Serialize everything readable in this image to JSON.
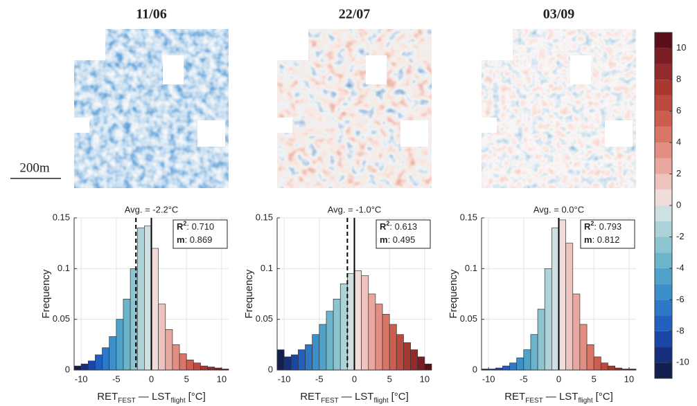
{
  "chart_data": [
    {
      "type": "histogram",
      "title": "11/06",
      "avg_text": "Avg. = -2.2°C",
      "mean": -2.2,
      "bins": [
        -11,
        -10,
        -9,
        -8,
        -7,
        -6,
        -5,
        -4,
        -3,
        -2,
        -1,
        0,
        1,
        2,
        3,
        4,
        5,
        6,
        7,
        8,
        9,
        10,
        11
      ],
      "values": [
        0.004,
        0.006,
        0.009,
        0.015,
        0.022,
        0.033,
        0.05,
        0.07,
        0.1,
        0.14,
        0.142,
        0.12,
        0.065,
        0.04,
        0.025,
        0.016,
        0.01,
        0.007,
        0.004,
        0.003,
        0.002,
        0.001
      ],
      "xlim": [
        -11,
        11
      ],
      "ylim": [
        0,
        0.15
      ],
      "xticks": [
        -10,
        -5,
        0,
        5,
        10
      ],
      "yticks": [
        0,
        0.05,
        0.1,
        0.15
      ],
      "grid": true,
      "ylabel": "Frequency",
      "xlabel": {
        "a": "RET",
        "a_sub": "FEST",
        "b": "— LST",
        "b_sub": "flight",
        "unit": "[°C]"
      },
      "stats": {
        "r2_name": "R",
        "r2_sup": "2",
        "r2": ": 0.710",
        "m_name": "m",
        "m": ": 0.869"
      }
    },
    {
      "type": "histogram",
      "title": "22/07",
      "avg_text": "Avg. = -1.0°C",
      "mean": -1.0,
      "bins": [
        -11,
        -10,
        -9,
        -8,
        -7,
        -6,
        -5,
        -4,
        -3,
        -2,
        -1,
        0,
        1,
        2,
        3,
        4,
        5,
        6,
        7,
        8,
        9,
        10,
        11
      ],
      "values": [
        0.02,
        0.013,
        0.015,
        0.02,
        0.025,
        0.035,
        0.045,
        0.058,
        0.07,
        0.085,
        0.095,
        0.098,
        0.093,
        0.075,
        0.065,
        0.055,
        0.045,
        0.035,
        0.027,
        0.02,
        0.013,
        0.006
      ],
      "xlim": [
        -11,
        11
      ],
      "ylim": [
        0,
        0.15
      ],
      "xticks": [
        -10,
        -5,
        0,
        5,
        10
      ],
      "yticks": [
        0,
        0.05,
        0.1,
        0.15
      ],
      "grid": true,
      "ylabel": "Frequency",
      "xlabel": {
        "a": "RET",
        "a_sub": "FEST",
        "b": "— LST",
        "b_sub": "flight",
        "unit": "[°C]"
      },
      "stats": {
        "r2_name": "R",
        "r2_sup": "2",
        "r2": ": 0.613",
        "m_name": "m",
        "m": ": 0.495"
      }
    },
    {
      "type": "histogram",
      "title": "03/09",
      "avg_text": "Avg. = 0.0°C",
      "mean": 0.0,
      "bins": [
        -11,
        -10,
        -9,
        -8,
        -7,
        -6,
        -5,
        -4,
        -3,
        -2,
        -1,
        0,
        1,
        2,
        3,
        4,
        5,
        6,
        7,
        8,
        9,
        10,
        11
      ],
      "values": [
        0.001,
        0.001,
        0.002,
        0.004,
        0.007,
        0.012,
        0.02,
        0.035,
        0.06,
        0.1,
        0.14,
        0.148,
        0.125,
        0.075,
        0.045,
        0.025,
        0.013,
        0.007,
        0.004,
        0.002,
        0.001,
        0.001
      ],
      "xlim": [
        -11,
        11
      ],
      "ylim": [
        0,
        0.15
      ],
      "xticks": [
        -10,
        -5,
        0,
        5,
        10
      ],
      "yticks": [
        0,
        0.05,
        0.1,
        0.15
      ],
      "grid": true,
      "ylabel": "Frequency",
      "xlabel": {
        "a": "RET",
        "a_sub": "FEST",
        "b": "— LST",
        "b_sub": "flight",
        "unit": "[°C]"
      },
      "stats": {
        "r2_name": "R",
        "r2_sup": "2",
        "r2": ": 0.793",
        "m_name": "m",
        "m": ": 0.812"
      }
    }
  ],
  "colorbar": {
    "clim": [
      -11,
      11
    ],
    "ticks": [
      -10,
      -8,
      -6,
      -4,
      -2,
      0,
      2,
      4,
      6,
      8,
      10
    ],
    "colors": [
      "#13204f",
      "#172f7c",
      "#1a47a5",
      "#2160bf",
      "#2e78c8",
      "#3c8fc9",
      "#4fa3c8",
      "#6bb4c9",
      "#8cc4d0",
      "#add3d9",
      "#cfe0e3",
      "#f0dcd9",
      "#eec3bd",
      "#e9a89f",
      "#e28e82",
      "#d87567",
      "#cc5e50",
      "#bd4a3f",
      "#a93833",
      "#932a2b",
      "#7a1d24",
      "#5a0f1a"
    ]
  },
  "scale_label": "200m"
}
